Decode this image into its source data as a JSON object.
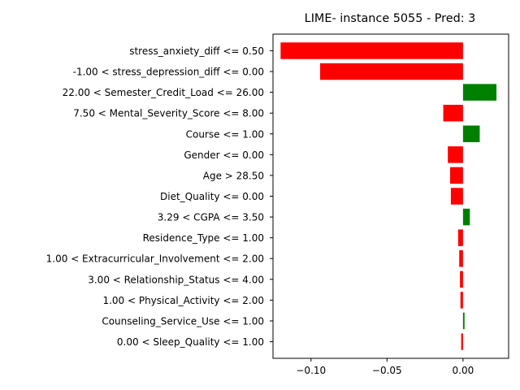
{
  "chart_data": {
    "type": "bar",
    "orientation": "horizontal",
    "title": "LIME- instance 5055 - Pred: 3",
    "xlabel": "",
    "ylabel": "",
    "xlim": [
      -0.125,
      0.03
    ],
    "x_ticks": [
      -0.1,
      -0.05,
      0.0
    ],
    "x_tick_labels": [
      "−0.10",
      "−0.05",
      "0.00"
    ],
    "grid": false,
    "legend": "none",
    "positive_color": "#008000",
    "negative_color": "#ff0000",
    "categories": [
      "stress_anxiety_diff <= 0.50",
      "-1.00 < stress_depression_diff <= 0.00",
      "22.00 < Semester_Credit_Load <= 26.00",
      "7.50 < Mental_Severity_Score <= 8.00",
      "Course <= 1.00",
      "Gender <= 0.00",
      "Age > 28.50",
      "Diet_Quality <= 0.00",
      "3.29 < CGPA <= 3.50",
      "Residence_Type <= 1.00",
      "1.00 < Extracurricular_Involvement <= 2.00",
      "3.00 < Relationship_Status <= 4.00",
      "1.00 < Physical_Activity <= 2.00",
      "Counseling_Service_Use <= 1.00",
      "0.00 < Sleep_Quality <= 1.00"
    ],
    "values": [
      -0.12,
      -0.094,
      0.022,
      -0.013,
      0.011,
      -0.01,
      -0.0085,
      -0.008,
      0.0045,
      -0.0032,
      -0.0025,
      -0.002,
      -0.0017,
      0.001,
      -0.0012
    ]
  }
}
